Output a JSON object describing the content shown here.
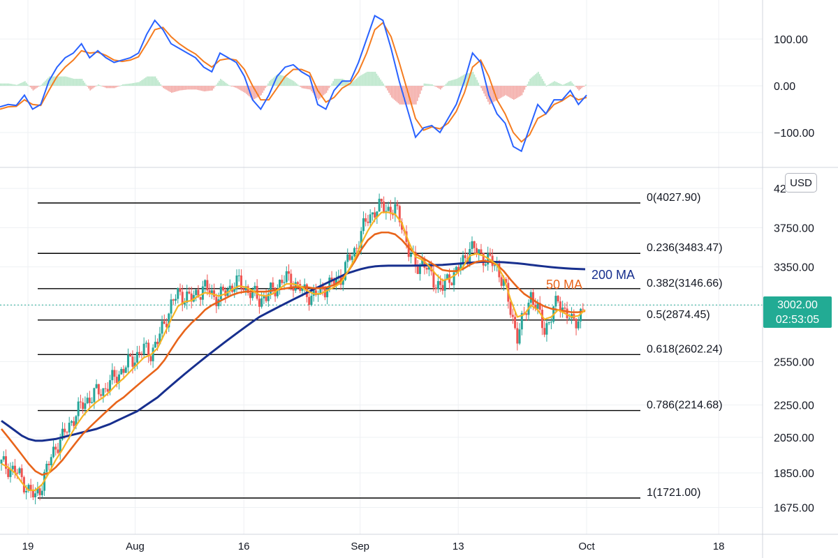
{
  "currency": "USD",
  "price_badge": {
    "price": "3002.00",
    "countdown": "02:53:05"
  },
  "colors": {
    "up": "#26a69a",
    "down": "#ef5350",
    "hist_up": "#b9e6c9",
    "hist_down": "#f3a9a5",
    "macd_line": "#2962ff",
    "signal_line": "#f57c1f",
    "ma_fast": "#f5b324",
    "ma_50": "#e8641a",
    "ma_200": "#172f8e",
    "fib_line": "#000000",
    "grid": "#eef0f3",
    "last_price_line": "#22ab94"
  },
  "chart_data": [
    {
      "type": "line",
      "subtype": "macd",
      "y_ticks": [
        "100.00",
        "0.00",
        "−100.00"
      ],
      "ylim": [
        -150,
        180
      ],
      "series": [
        {
          "role": "macd",
          "values": [
            -45,
            -40,
            -42,
            -20,
            -50,
            -40,
            10,
            40,
            60,
            70,
            90,
            60,
            75,
            60,
            50,
            55,
            60,
            70,
            110,
            140,
            120,
            90,
            80,
            70,
            60,
            40,
            30,
            70,
            60,
            50,
            20,
            -30,
            -50,
            -20,
            20,
            40,
            45,
            30,
            20,
            -40,
            -50,
            -10,
            10,
            10,
            50,
            100,
            150,
            140,
            80,
            10,
            -50,
            -110,
            -90,
            -85,
            -100,
            -70,
            -40,
            10,
            70,
            50,
            -20,
            -60,
            -80,
            -130,
            -140,
            -90,
            -40,
            -60,
            -30,
            -30,
            -10,
            -40,
            -20
          ]
        },
        {
          "role": "signal",
          "values": [
            -50,
            -45,
            -44,
            -30,
            -40,
            -42,
            -10,
            20,
            40,
            55,
            75,
            70,
            72,
            65,
            55,
            52,
            55,
            62,
            90,
            120,
            125,
            105,
            90,
            78,
            68,
            52,
            40,
            55,
            58,
            55,
            35,
            0,
            -30,
            -30,
            -5,
            20,
            35,
            35,
            28,
            -10,
            -35,
            -25,
            -5,
            5,
            30,
            70,
            120,
            135,
            105,
            50,
            -10,
            -70,
            -95,
            -88,
            -92,
            -80,
            -55,
            -15,
            40,
            55,
            20,
            -30,
            -60,
            -100,
            -120,
            -105,
            -70,
            -60,
            -40,
            -32,
            -20,
            -30,
            -25
          ]
        },
        {
          "role": "histogram",
          "values": [
            5,
            5,
            2,
            10,
            -10,
            2,
            20,
            20,
            20,
            15,
            15,
            -10,
            3,
            -5,
            -5,
            3,
            5,
            8,
            20,
            20,
            -5,
            -15,
            -10,
            -8,
            -8,
            -12,
            -10,
            15,
            2,
            -5,
            -15,
            -30,
            -20,
            10,
            25,
            20,
            10,
            -5,
            -8,
            -30,
            -15,
            15,
            15,
            5,
            20,
            30,
            30,
            5,
            -25,
            -40,
            -40,
            -40,
            5,
            3,
            -8,
            10,
            15,
            25,
            30,
            -5,
            -40,
            -30,
            -20,
            -30,
            -20,
            15,
            30,
            0,
            10,
            2,
            10,
            -10,
            5
          ]
        }
      ]
    },
    {
      "type": "candlestick",
      "subtype": "price",
      "y_ticks": [
        "4200",
        "3750.00",
        "3350.00",
        "3000.00",
        "2550.00",
        "2250.00",
        "2050.00",
        "1850.00",
        "1675.00"
      ],
      "scale": "log",
      "x_ticks": [
        "19",
        "Aug",
        "16",
        "Sep",
        "13",
        "Oct",
        "18"
      ],
      "close": [
        1900,
        1880,
        1860,
        1820,
        1760,
        1721,
        1800,
        1900,
        2000,
        2050,
        2120,
        2200,
        2250,
        2300,
        2330,
        2350,
        2400,
        2450,
        2500,
        2550,
        2600,
        2640,
        2620,
        2700,
        2850,
        3000,
        3100,
        3080,
        3050,
        3120,
        3150,
        3100,
        3060,
        3120,
        3180,
        3200,
        3150,
        3100,
        3050,
        3080,
        3130,
        3200,
        3240,
        3200,
        3150,
        3100,
        3080,
        3120,
        3180,
        3200,
        3250,
        3400,
        3500,
        3700,
        3850,
        3950,
        3980,
        3960,
        3940,
        3800,
        3500,
        3350,
        3400,
        3300,
        3200,
        3150,
        3250,
        3300,
        3400,
        3550,
        3500,
        3450,
        3400,
        3350,
        3200,
        2950,
        2750,
        2900,
        3100,
        2950,
        2800,
        2900,
        3050,
        2950,
        2850,
        2900,
        3000
      ],
      "ma_labels": {
        "ma_50": "50 MA",
        "ma_200": "200 MA"
      },
      "ma_fast": [
        1900,
        1880,
        1850,
        1800,
        1760,
        1760,
        1790,
        1850,
        1920,
        1980,
        2050,
        2120,
        2180,
        2230,
        2270,
        2300,
        2340,
        2390,
        2430,
        2480,
        2530,
        2580,
        2600,
        2650,
        2760,
        2880,
        2990,
        3030,
        3040,
        3080,
        3110,
        3100,
        3080,
        3100,
        3140,
        3170,
        3160,
        3130,
        3090,
        3080,
        3100,
        3150,
        3190,
        3190,
        3170,
        3130,
        3100,
        3100,
        3130,
        3160,
        3200,
        3300,
        3420,
        3580,
        3720,
        3840,
        3920,
        3920,
        3900,
        3800,
        3600,
        3450,
        3420,
        3360,
        3280,
        3220,
        3240,
        3280,
        3350,
        3460,
        3480,
        3460,
        3420,
        3370,
        3250,
        3050,
        2900,
        2920,
        3000,
        2960,
        2880,
        2900,
        2960,
        2930,
        2900,
        2910,
        2960
      ],
      "ma_50": [
        2100,
        2050,
        2000,
        1950,
        1900,
        1860,
        1840,
        1850,
        1880,
        1920,
        1970,
        2020,
        2070,
        2110,
        2150,
        2190,
        2230,
        2270,
        2300,
        2340,
        2380,
        2420,
        2460,
        2500,
        2560,
        2640,
        2720,
        2790,
        2850,
        2900,
        2960,
        3000,
        3030,
        3060,
        3090,
        3110,
        3120,
        3120,
        3120,
        3120,
        3130,
        3140,
        3150,
        3160,
        3160,
        3160,
        3150,
        3150,
        3160,
        3180,
        3220,
        3300,
        3400,
        3520,
        3620,
        3680,
        3700,
        3700,
        3680,
        3620,
        3540,
        3480,
        3440,
        3400,
        3360,
        3320,
        3310,
        3310,
        3330,
        3370,
        3400,
        3410,
        3400,
        3370,
        3310,
        3230,
        3160,
        3100,
        3060,
        3020,
        2990,
        2970,
        2960,
        2950,
        2940,
        2940,
        2950
      ],
      "ma_200": [
        2150,
        2120,
        2090,
        2060,
        2040,
        2030,
        2030,
        2035,
        2040,
        2050,
        2060,
        2070,
        2080,
        2090,
        2100,
        2115,
        2130,
        2150,
        2170,
        2190,
        2210,
        2240,
        2270,
        2300,
        2340,
        2380,
        2420,
        2460,
        2500,
        2540,
        2580,
        2620,
        2660,
        2700,
        2740,
        2780,
        2820,
        2860,
        2900,
        2930,
        2960,
        2990,
        3020,
        3050,
        3080,
        3110,
        3140,
        3170,
        3200,
        3230,
        3260,
        3290,
        3310,
        3330,
        3345,
        3355,
        3360,
        3362,
        3362,
        3362,
        3362,
        3363,
        3364,
        3366,
        3368,
        3370,
        3375,
        3380,
        3385,
        3390,
        3395,
        3400,
        3400,
        3398,
        3395,
        3390,
        3385,
        3378,
        3370,
        3362,
        3355,
        3348,
        3342,
        3337,
        3333,
        3330,
        3328
      ],
      "fib_levels": [
        {
          "label": "0(4027.90)",
          "value": 4027.9
        },
        {
          "label": "0.236(3483.47)",
          "value": 3483.47
        },
        {
          "label": "0.382(3146.66)",
          "value": 3146.66
        },
        {
          "label": "0.5(2874.45)",
          "value": 2874.45
        },
        {
          "label": "0.618(2602.24)",
          "value": 2602.24
        },
        {
          "label": "0.786(2214.68)",
          "value": 2214.68
        },
        {
          "label": "1(1721.00)",
          "value": 1721.0
        }
      ],
      "last_price": 3002.0
    }
  ]
}
